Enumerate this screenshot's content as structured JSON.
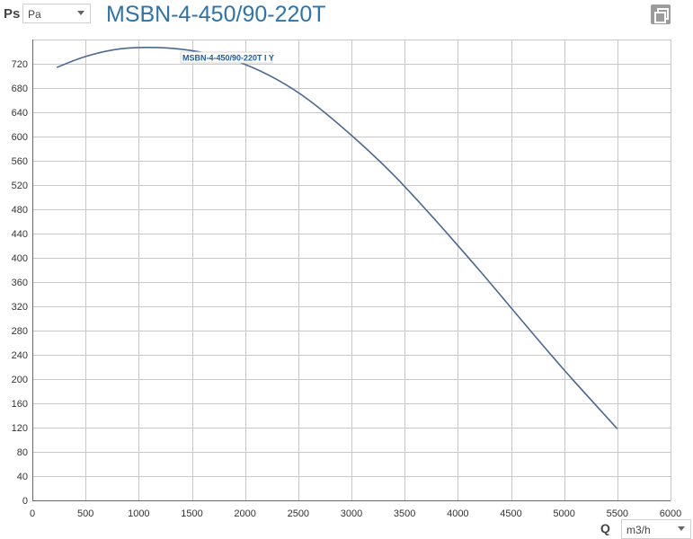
{
  "header": {
    "y_quantity": "Ps",
    "y_unit": "Pa",
    "title": "MSBN-4-450/90-220T"
  },
  "footer": {
    "x_quantity": "Q",
    "x_unit": "m3/h"
  },
  "icons": {
    "copy": "copy-icon",
    "dropdown": "chevron-down-icon"
  },
  "colors": {
    "curve": "#4a6990",
    "title": "#2f73a8",
    "curve_label": "#1f5e9a"
  },
  "chart_data": {
    "type": "line",
    "title": "MSBN-4-450/90-220T",
    "xlabel": "Q",
    "ylabel": "Ps",
    "xlim": [
      0,
      6000
    ],
    "ylim": [
      0,
      760
    ],
    "xticks": [
      0,
      500,
      1000,
      1500,
      2000,
      2500,
      3000,
      3500,
      4000,
      4500,
      5000,
      5500,
      6000
    ],
    "yticks": [
      0,
      40,
      80,
      120,
      160,
      200,
      240,
      280,
      320,
      360,
      400,
      440,
      480,
      520,
      560,
      600,
      640,
      680,
      720
    ],
    "grid": true,
    "series": [
      {
        "name": "MSBN-4-450/90-220T I Y",
        "x": [
          230,
          500,
          800,
          1100,
          1400,
          1700,
          2000,
          2300,
          2600,
          3000,
          3400,
          3800,
          4200,
          4600,
          5000,
          5500
        ],
        "y": [
          714,
          732,
          744,
          747,
          744,
          735,
          719,
          694,
          660,
          602,
          536,
          460,
          380,
          297,
          215,
          118
        ]
      }
    ]
  }
}
